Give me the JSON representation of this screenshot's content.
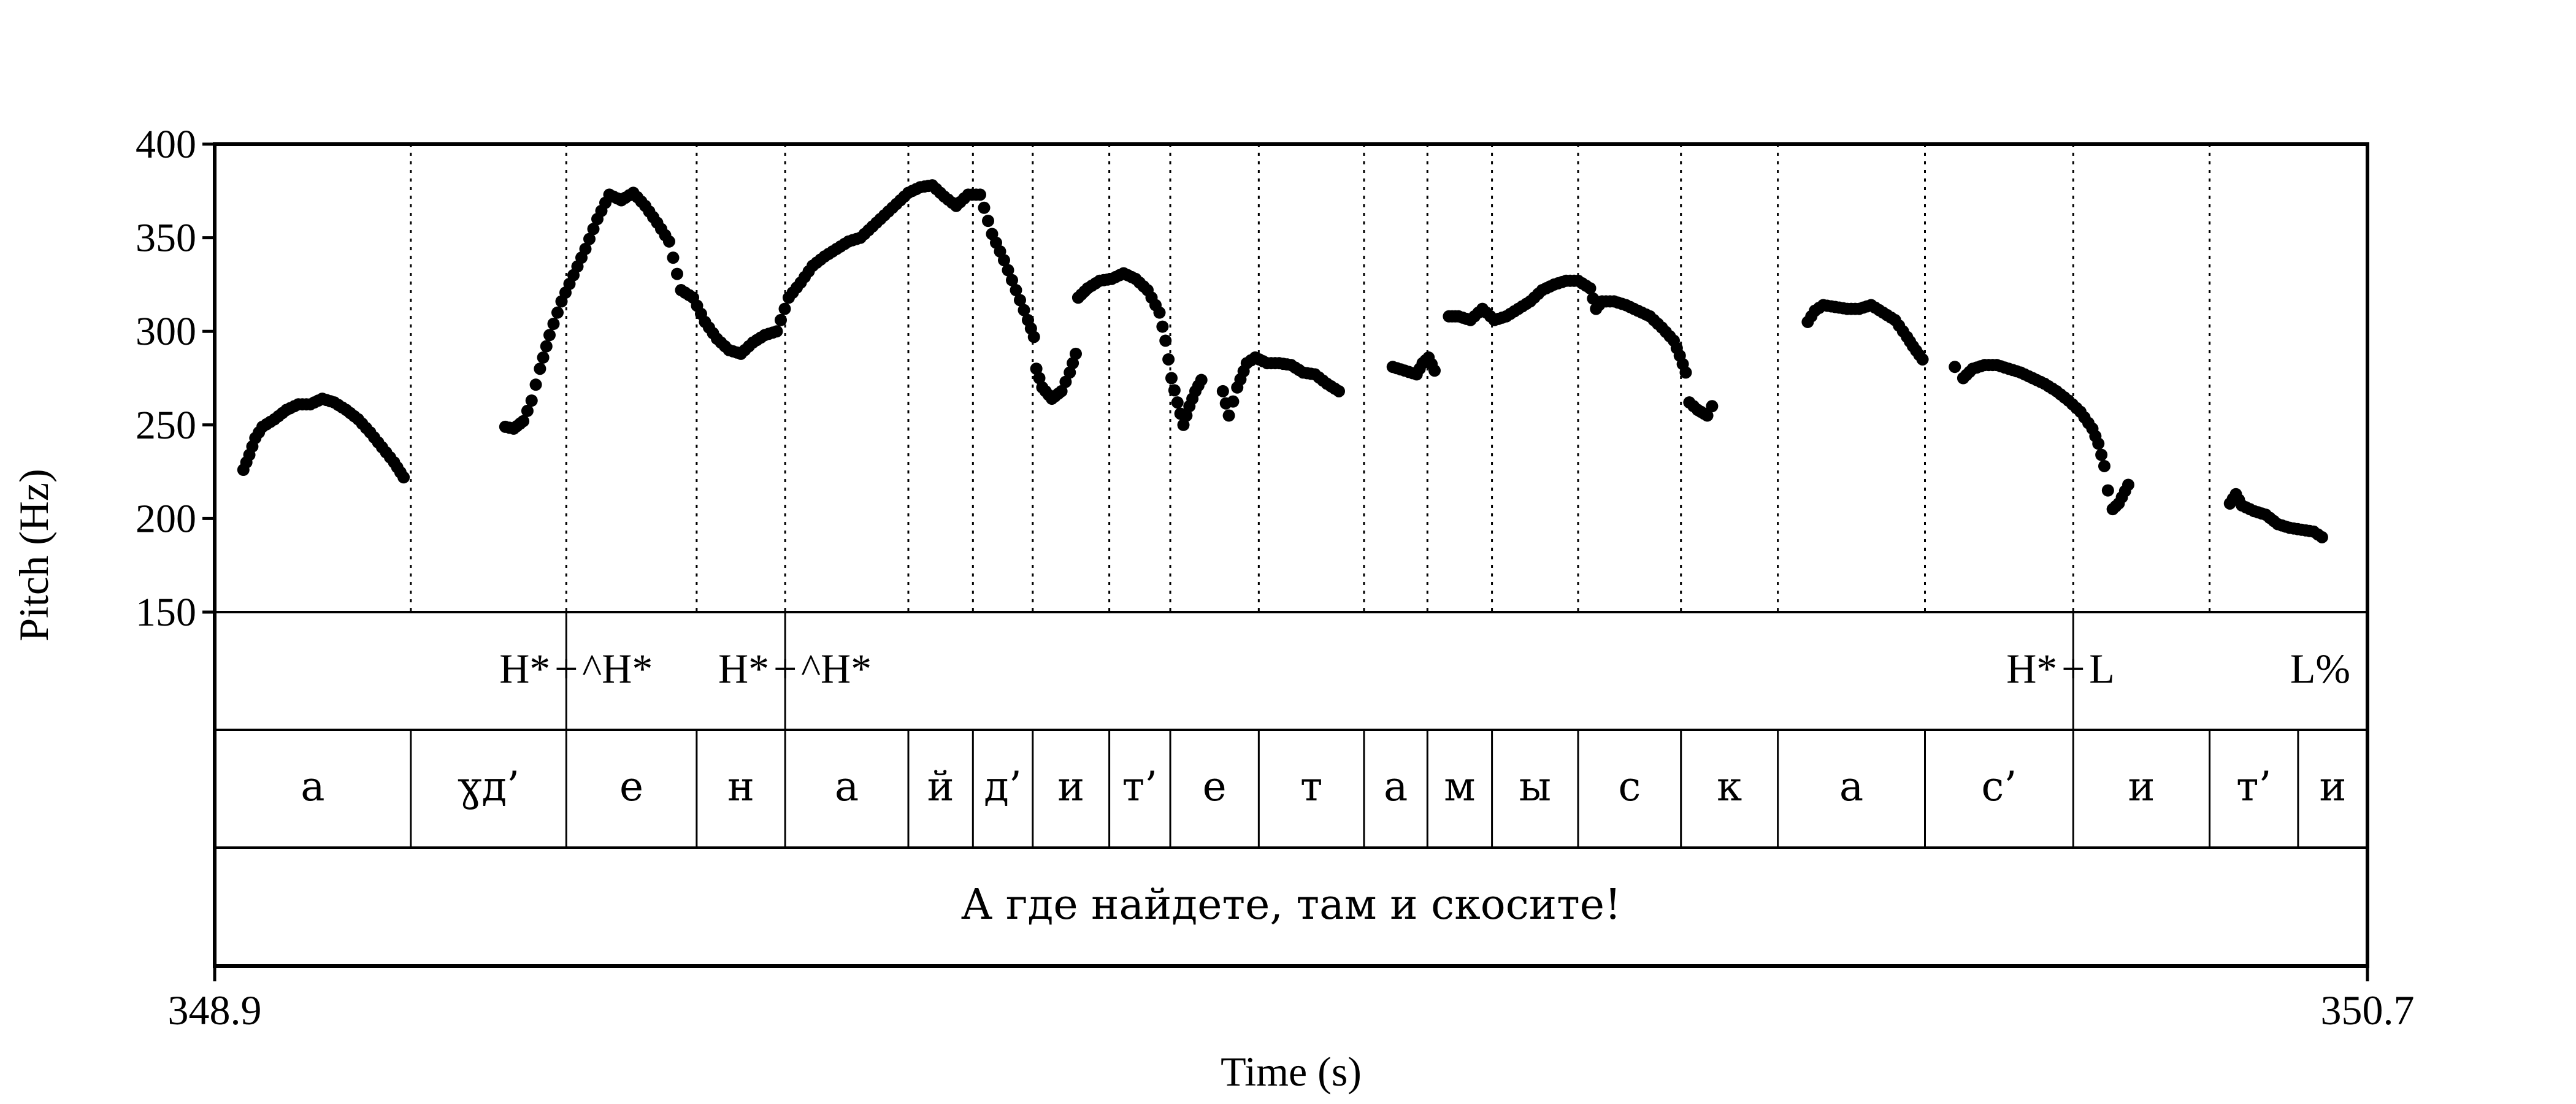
{
  "chart_data": {
    "type": "scatter",
    "title": "",
    "ylabel": "Pitch (Hz)",
    "xlabel": "Time (s)",
    "ylim": [
      150,
      400
    ],
    "yticks": [
      "150",
      "200",
      "250",
      "300",
      "350",
      "400"
    ],
    "ytick_values": [
      150,
      200,
      250,
      300,
      350,
      400
    ],
    "xlim": [
      348.9,
      350.7
    ],
    "xticks": [
      "348.9",
      "350.7"
    ],
    "pitch_contours": [
      [
        [
          348.924,
          226
        ],
        [
          348.929,
          234
        ],
        [
          348.934,
          243
        ],
        [
          348.94,
          249
        ],
        [
          348.95,
          253
        ],
        [
          348.96,
          258
        ],
        [
          348.97,
          261
        ],
        [
          348.98,
          261
        ],
        [
          348.99,
          264
        ],
        [
          349.0,
          262
        ],
        [
          349.01,
          258
        ],
        [
          349.02,
          253
        ],
        [
          349.03,
          246
        ],
        [
          349.04,
          238
        ],
        [
          349.05,
          230
        ],
        [
          349.058,
          222
        ]
      ],
      [
        [
          349.143,
          249
        ],
        [
          349.15,
          248
        ],
        [
          349.158,
          252
        ],
        [
          349.165,
          263
        ],
        [
          349.172,
          280
        ],
        [
          349.18,
          298
        ],
        [
          349.19,
          316
        ],
        [
          349.2,
          330
        ],
        [
          349.21,
          344
        ],
        [
          349.22,
          360
        ],
        [
          349.23,
          373
        ],
        [
          349.24,
          370
        ],
        [
          349.25,
          374
        ],
        [
          349.26,
          367
        ],
        [
          349.27,
          358
        ],
        [
          349.28,
          348
        ],
        [
          349.29,
          322
        ],
        [
          349.3,
          318
        ],
        [
          349.31,
          305
        ],
        [
          349.32,
          296
        ],
        [
          349.33,
          290
        ],
        [
          349.34,
          288
        ],
        [
          349.35,
          294
        ],
        [
          349.36,
          298
        ],
        [
          349.37,
          300
        ],
        [
          349.38,
          318
        ],
        [
          349.39,
          326
        ],
        [
          349.4,
          335
        ],
        [
          349.41,
          340
        ],
        [
          349.42,
          344
        ],
        [
          349.43,
          348
        ],
        [
          349.44,
          350
        ],
        [
          349.45,
          356
        ],
        [
          349.46,
          362
        ],
        [
          349.47,
          368
        ],
        [
          349.48,
          374
        ],
        [
          349.49,
          377
        ],
        [
          349.5,
          378
        ],
        [
          349.51,
          372
        ],
        [
          349.52,
          367
        ],
        [
          349.53,
          373
        ],
        [
          349.54,
          373
        ],
        [
          349.55,
          352
        ],
        [
          349.56,
          338
        ],
        [
          349.57,
          322
        ],
        [
          349.58,
          306
        ],
        [
          349.585,
          297
        ]
      ],
      [
        [
          349.587,
          280
        ],
        [
          349.592,
          270
        ],
        [
          349.6,
          264
        ],
        [
          349.608,
          268
        ],
        [
          349.615,
          278
        ],
        [
          349.62,
          288
        ]
      ],
      [
        [
          349.622,
          318
        ],
        [
          349.63,
          323
        ],
        [
          349.64,
          327
        ],
        [
          349.65,
          328
        ],
        [
          349.66,
          331
        ],
        [
          349.67,
          328
        ],
        [
          349.68,
          322
        ],
        [
          349.69,
          310
        ],
        [
          349.695,
          295
        ],
        [
          349.7,
          275
        ],
        [
          349.705,
          262
        ],
        [
          349.71,
          250
        ],
        [
          349.715,
          260
        ],
        [
          349.72,
          268
        ],
        [
          349.725,
          274
        ]
      ],
      [
        [
          349.743,
          268
        ],
        [
          349.748,
          255
        ],
        [
          349.755,
          270
        ],
        [
          349.763,
          283
        ],
        [
          349.77,
          286
        ],
        [
          349.78,
          283
        ],
        [
          349.79,
          283
        ],
        [
          349.8,
          282
        ],
        [
          349.81,
          278
        ],
        [
          349.82,
          277
        ],
        [
          349.83,
          272
        ],
        [
          349.84,
          268
        ]
      ],
      [
        [
          349.885,
          281
        ],
        [
          349.895,
          279
        ],
        [
          349.905,
          277
        ],
        [
          349.91,
          283
        ],
        [
          349.915,
          286
        ],
        [
          349.92,
          279
        ]
      ],
      [
        [
          349.932,
          308
        ],
        [
          349.94,
          308
        ],
        [
          349.95,
          306
        ],
        [
          349.96,
          312
        ],
        [
          349.97,
          306
        ],
        [
          349.98,
          308
        ],
        [
          349.99,
          312
        ],
        [
          350.0,
          316
        ],
        [
          350.01,
          322
        ],
        [
          350.02,
          325
        ],
        [
          350.03,
          327
        ],
        [
          350.04,
          327
        ],
        [
          350.05,
          323
        ],
        [
          350.055,
          312
        ],
        [
          350.06,
          316
        ],
        [
          350.07,
          316
        ],
        [
          350.08,
          314
        ],
        [
          350.09,
          311
        ],
        [
          350.1,
          308
        ],
        [
          350.11,
          302
        ],
        [
          350.12,
          295
        ],
        [
          350.125,
          287
        ],
        [
          350.13,
          278
        ],
        [
          350.133,
          262
        ],
        [
          350.14,
          258
        ],
        [
          350.148,
          255
        ],
        [
          350.152,
          260
        ]
      ],
      [
        [
          350.232,
          305
        ],
        [
          350.238,
          311
        ],
        [
          350.245,
          314
        ],
        [
          350.255,
          313
        ],
        [
          350.265,
          312
        ],
        [
          350.275,
          312
        ],
        [
          350.285,
          314
        ],
        [
          350.295,
          310
        ],
        [
          350.305,
          306
        ],
        [
          350.315,
          297
        ],
        [
          350.32,
          292
        ],
        [
          350.328,
          285
        ]
      ],
      [
        [
          350.355,
          281
        ]
      ],
      [
        [
          350.362,
          275
        ],
        [
          350.37,
          280
        ],
        [
          350.38,
          282
        ],
        [
          350.39,
          282
        ],
        [
          350.4,
          280
        ],
        [
          350.41,
          278
        ],
        [
          350.42,
          275
        ],
        [
          350.43,
          272
        ],
        [
          350.44,
          268
        ],
        [
          350.45,
          263
        ],
        [
          350.46,
          257
        ],
        [
          350.47,
          248
        ],
        [
          350.475,
          240
        ],
        [
          350.48,
          228
        ],
        [
          350.483,
          215
        ],
        [
          350.487,
          205
        ],
        [
          350.492,
          208
        ],
        [
          350.5,
          218
        ]
      ],
      [
        [
          350.585,
          208
        ],
        [
          350.59,
          213
        ],
        [
          350.595,
          207
        ],
        [
          350.605,
          204
        ],
        [
          350.615,
          202
        ],
        [
          350.625,
          197
        ],
        [
          350.635,
          195
        ],
        [
          350.645,
          194
        ],
        [
          350.655,
          193
        ],
        [
          350.662,
          190
        ]
      ]
    ],
    "boundaries": [
      349.064,
      349.194,
      349.303,
      349.377,
      349.48,
      349.534,
      349.584,
      349.648,
      349.699,
      349.773,
      349.861,
      349.914,
      349.968,
      350.04,
      350.126,
      350.207,
      350.33,
      350.454,
      350.568
    ],
    "tones": [
      {
        "label": "H*",
        "t": 349.194
      },
      {
        "label": "^H*",
        "t": 349.194
      },
      {
        "label": "H*",
        "t": 349.377
      },
      {
        "label": "^H*",
        "t": 349.377
      },
      {
        "label": "H*",
        "t": 350.454
      },
      {
        "label": "L",
        "t": 350.454
      },
      {
        "label": "L%",
        "t": 350.7
      }
    ],
    "tone_joiner": "+",
    "phones": [
      {
        "label": "а",
        "start": 348.9,
        "end": 349.064
      },
      {
        "label": "ɣд’",
        "start": 349.064,
        "end": 349.194
      },
      {
        "label": "е",
        "start": 349.194,
        "end": 349.303
      },
      {
        "label": "н",
        "start": 349.303,
        "end": 349.377
      },
      {
        "label": "а",
        "start": 349.377,
        "end": 349.48
      },
      {
        "label": "й",
        "start": 349.48,
        "end": 349.534
      },
      {
        "label": "д’",
        "start": 349.534,
        "end": 349.584
      },
      {
        "label": "и",
        "start": 349.584,
        "end": 349.648
      },
      {
        "label": "т’",
        "start": 349.648,
        "end": 349.699
      },
      {
        "label": "е",
        "start": 349.699,
        "end": 349.773
      },
      {
        "label": "т",
        "start": 349.773,
        "end": 349.861
      },
      {
        "label": "а",
        "start": 349.861,
        "end": 349.914
      },
      {
        "label": "м",
        "start": 349.914,
        "end": 349.968
      },
      {
        "label": "ы",
        "start": 349.968,
        "end": 350.04
      },
      {
        "label": "с",
        "start": 350.04,
        "end": 350.126
      },
      {
        "label": "к",
        "start": 350.126,
        "end": 350.207
      },
      {
        "label": "а",
        "start": 350.207,
        "end": 350.33
      },
      {
        "label": "с’",
        "start": 350.33,
        "end": 350.454
      },
      {
        "label": "и",
        "start": 350.454,
        "end": 350.568
      },
      {
        "label": "т’",
        "start": 350.568,
        "end": 350.642
      },
      {
        "label": "и",
        "start": 350.642,
        "end": 350.7
      }
    ],
    "sentence": "А где найдете, там и скосите!"
  }
}
